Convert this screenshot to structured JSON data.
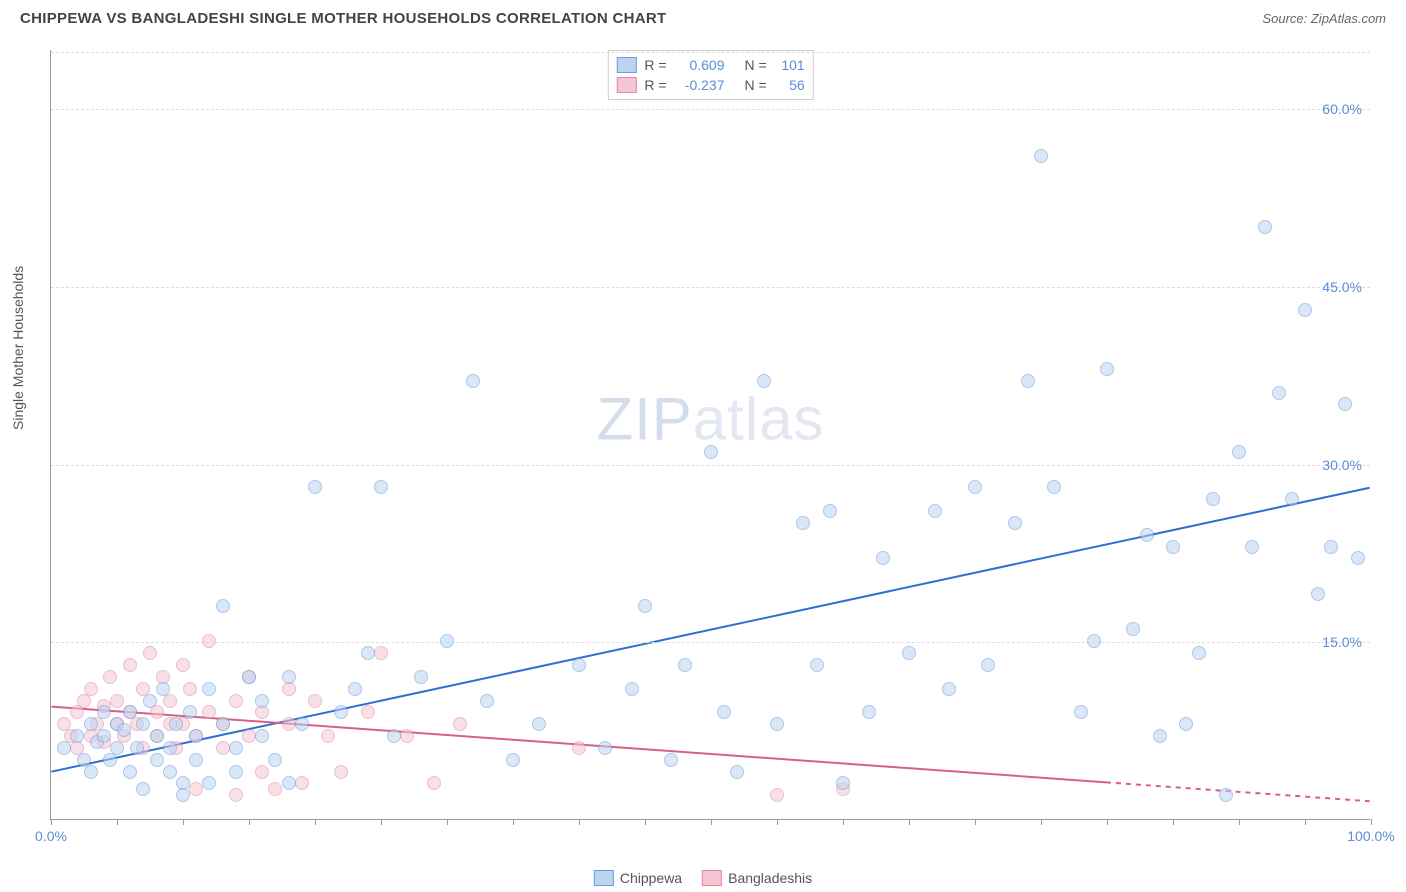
{
  "header": {
    "title": "CHIPPEWA VS BANGLADESHI SINGLE MOTHER HOUSEHOLDS CORRELATION CHART",
    "source": "Source: ZipAtlas.com"
  },
  "watermark": {
    "prefix": "ZIP",
    "suffix": "atlas"
  },
  "chart": {
    "type": "scatter",
    "ylabel": "Single Mother Households",
    "background_color": "#ffffff",
    "grid_color": "#dddddd",
    "axis_color": "#999999",
    "tick_label_color": "#5b8dd6",
    "xlim": [
      0,
      100
    ],
    "ylim": [
      0,
      65
    ],
    "x_ticks": [
      0,
      5,
      10,
      15,
      20,
      25,
      30,
      35,
      40,
      45,
      50,
      55,
      60,
      65,
      70,
      75,
      80,
      85,
      90,
      95,
      100
    ],
    "x_tick_labels": {
      "0": "0.0%",
      "100": "100.0%"
    },
    "y_ticks": [
      15,
      30,
      45,
      60
    ],
    "y_tick_labels": {
      "15": "15.0%",
      "30": "30.0%",
      "45": "45.0%",
      "60": "60.0%"
    },
    "marker_radius": 7,
    "marker_border_width": 1.2,
    "line_width": 2
  },
  "legend_top": {
    "rows": [
      {
        "swatch_fill": "#bdd4f0",
        "swatch_border": "#6b9be0",
        "r_label": "R =",
        "r_value": "0.609",
        "n_label": "N =",
        "n_value": "101"
      },
      {
        "swatch_fill": "#f5c6d3",
        "swatch_border": "#e08aa5",
        "r_label": "R =",
        "r_value": "-0.237",
        "n_label": "N =",
        "n_value": "56"
      }
    ],
    "label_color": "#555555",
    "value_color": "#5b8dd6"
  },
  "legend_bottom": {
    "items": [
      {
        "swatch_fill": "#bdd4f0",
        "swatch_border": "#6b9be0",
        "label": "Chippewa"
      },
      {
        "swatch_fill": "#f5c6d3",
        "swatch_border": "#e08aa5",
        "label": "Bangladeshis"
      }
    ]
  },
  "series": [
    {
      "name": "chippewa",
      "fill": "#bdd4f0",
      "border": "#6b9be0",
      "fill_opacity": 0.55,
      "trend": {
        "x1": 0,
        "y1": 4,
        "x2": 100,
        "y2": 28,
        "color": "#2e6fd1",
        "dash_after_x": null
      },
      "points": [
        [
          1,
          6
        ],
        [
          2,
          7
        ],
        [
          2.5,
          5
        ],
        [
          3,
          8
        ],
        [
          3,
          4
        ],
        [
          3.5,
          6.5
        ],
        [
          4,
          7
        ],
        [
          4,
          9
        ],
        [
          4.5,
          5
        ],
        [
          5,
          8
        ],
        [
          5,
          6
        ],
        [
          5.5,
          7.5
        ],
        [
          6,
          9
        ],
        [
          6,
          4
        ],
        [
          6.5,
          6
        ],
        [
          7,
          8
        ],
        [
          7,
          2.5
        ],
        [
          7.5,
          10
        ],
        [
          8,
          5
        ],
        [
          8,
          7
        ],
        [
          8.5,
          11
        ],
        [
          9,
          6
        ],
        [
          9,
          4
        ],
        [
          9.5,
          8
        ],
        [
          10,
          3
        ],
        [
          10,
          2
        ],
        [
          10.5,
          9
        ],
        [
          11,
          7
        ],
        [
          11,
          5
        ],
        [
          12,
          11
        ],
        [
          12,
          3
        ],
        [
          13,
          8
        ],
        [
          13,
          18
        ],
        [
          14,
          6
        ],
        [
          14,
          4
        ],
        [
          15,
          12
        ],
        [
          16,
          7
        ],
        [
          16,
          10
        ],
        [
          17,
          5
        ],
        [
          18,
          3
        ],
        [
          18,
          12
        ],
        [
          19,
          8
        ],
        [
          20,
          28
        ],
        [
          22,
          9
        ],
        [
          23,
          11
        ],
        [
          24,
          14
        ],
        [
          25,
          28
        ],
        [
          26,
          7
        ],
        [
          28,
          12
        ],
        [
          30,
          15
        ],
        [
          32,
          37
        ],
        [
          33,
          10
        ],
        [
          35,
          5
        ],
        [
          37,
          8
        ],
        [
          40,
          13
        ],
        [
          42,
          6
        ],
        [
          44,
          11
        ],
        [
          45,
          18
        ],
        [
          47,
          5
        ],
        [
          48,
          13
        ],
        [
          50,
          31
        ],
        [
          51,
          9
        ],
        [
          52,
          4
        ],
        [
          54,
          37
        ],
        [
          55,
          8
        ],
        [
          57,
          25
        ],
        [
          58,
          13
        ],
        [
          59,
          26
        ],
        [
          60,
          3
        ],
        [
          62,
          9
        ],
        [
          63,
          22
        ],
        [
          65,
          14
        ],
        [
          67,
          26
        ],
        [
          68,
          11
        ],
        [
          70,
          28
        ],
        [
          71,
          13
        ],
        [
          73,
          25
        ],
        [
          74,
          37
        ],
        [
          75,
          56
        ],
        [
          76,
          28
        ],
        [
          78,
          9
        ],
        [
          79,
          15
        ],
        [
          80,
          38
        ],
        [
          82,
          16
        ],
        [
          83,
          24
        ],
        [
          84,
          7
        ],
        [
          85,
          23
        ],
        [
          86,
          8
        ],
        [
          87,
          14
        ],
        [
          88,
          27
        ],
        [
          89,
          2
        ],
        [
          90,
          31
        ],
        [
          91,
          23
        ],
        [
          92,
          50
        ],
        [
          93,
          36
        ],
        [
          94,
          27
        ],
        [
          95,
          43
        ],
        [
          96,
          19
        ],
        [
          97,
          23
        ],
        [
          98,
          35
        ],
        [
          99,
          22
        ]
      ]
    },
    {
      "name": "bangladeshis",
      "fill": "#f5c6d3",
      "border": "#e08aa5",
      "fill_opacity": 0.55,
      "trend": {
        "x1": 0,
        "y1": 9.5,
        "x2": 100,
        "y2": 1.5,
        "color": "#d85f87",
        "dash_after_x": 80
      },
      "points": [
        [
          1,
          8
        ],
        [
          1.5,
          7
        ],
        [
          2,
          9
        ],
        [
          2,
          6
        ],
        [
          2.5,
          10
        ],
        [
          3,
          7
        ],
        [
          3,
          11
        ],
        [
          3.5,
          8
        ],
        [
          4,
          9.5
        ],
        [
          4,
          6.5
        ],
        [
          4.5,
          12
        ],
        [
          5,
          8
        ],
        [
          5,
          10
        ],
        [
          5.5,
          7
        ],
        [
          6,
          9
        ],
        [
          6,
          13
        ],
        [
          6.5,
          8
        ],
        [
          7,
          11
        ],
        [
          7,
          6
        ],
        [
          7.5,
          14
        ],
        [
          8,
          9
        ],
        [
          8,
          7
        ],
        [
          8.5,
          12
        ],
        [
          9,
          8
        ],
        [
          9,
          10
        ],
        [
          9.5,
          6
        ],
        [
          10,
          13
        ],
        [
          10,
          8
        ],
        [
          10.5,
          11
        ],
        [
          11,
          7
        ],
        [
          11,
          2.5
        ],
        [
          12,
          9
        ],
        [
          12,
          15
        ],
        [
          13,
          8
        ],
        [
          13,
          6
        ],
        [
          14,
          2
        ],
        [
          14,
          10
        ],
        [
          15,
          7
        ],
        [
          15,
          12
        ],
        [
          16,
          4
        ],
        [
          16,
          9
        ],
        [
          17,
          2.5
        ],
        [
          18,
          8
        ],
        [
          18,
          11
        ],
        [
          19,
          3
        ],
        [
          20,
          10
        ],
        [
          21,
          7
        ],
        [
          22,
          4
        ],
        [
          24,
          9
        ],
        [
          25,
          14
        ],
        [
          27,
          7
        ],
        [
          29,
          3
        ],
        [
          31,
          8
        ],
        [
          40,
          6
        ],
        [
          55,
          2
        ],
        [
          60,
          2.5
        ]
      ]
    }
  ]
}
